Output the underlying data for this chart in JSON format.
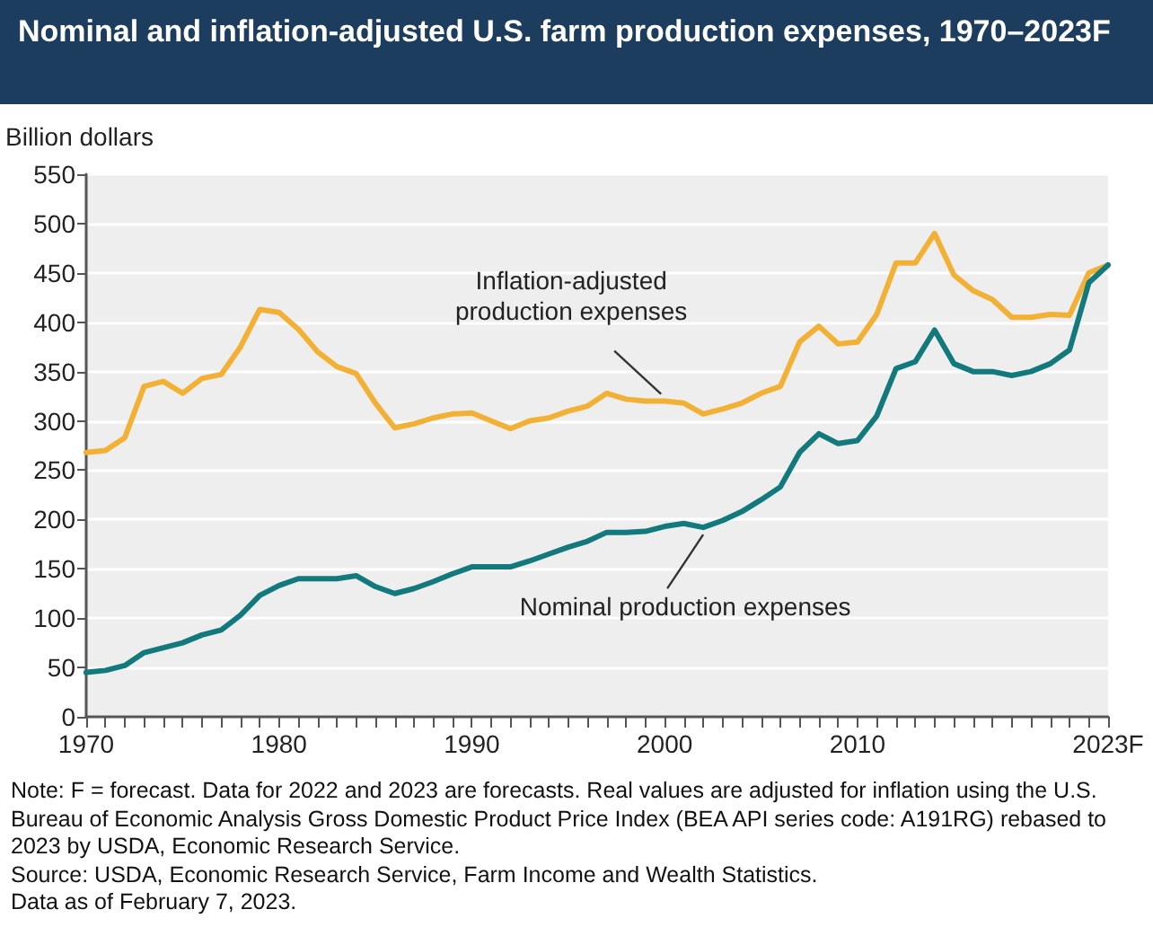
{
  "chart_data": {
    "type": "line",
    "title": "Nominal and inflation-adjusted U.S. farm production expenses, 1970–2023F",
    "ylabel": "Billion dollars",
    "x": [
      1970,
      1971,
      1972,
      1973,
      1974,
      1975,
      1976,
      1977,
      1978,
      1979,
      1980,
      1981,
      1982,
      1983,
      1984,
      1985,
      1986,
      1987,
      1988,
      1989,
      1990,
      1991,
      1992,
      1993,
      1994,
      1995,
      1996,
      1997,
      1998,
      1999,
      2000,
      2001,
      2002,
      2003,
      2004,
      2005,
      2006,
      2007,
      2008,
      2009,
      2010,
      2011,
      2012,
      2013,
      2014,
      2015,
      2016,
      2017,
      2018,
      2019,
      2020,
      2021,
      2022,
      2023
    ],
    "series": [
      {
        "color": "#f2b134",
        "values": [
          268,
          270,
          283,
          335,
          340,
          328,
          343,
          347,
          375,
          413,
          410,
          393,
          370,
          355,
          348,
          318,
          293,
          297,
          303,
          307,
          308,
          300,
          292,
          300,
          303,
          310,
          315,
          328,
          322,
          320,
          320,
          318,
          307,
          312,
          318,
          328,
          335,
          380,
          396,
          378,
          380,
          408,
          460,
          460,
          490,
          448,
          432,
          423,
          405,
          405,
          408,
          407,
          450,
          458
        ]
      },
      {
        "color": "#12797c",
        "values": [
          45,
          47,
          52,
          65,
          70,
          75,
          83,
          88,
          103,
          123,
          133,
          140,
          140,
          140,
          143,
          132,
          125,
          130,
          137,
          145,
          152,
          152,
          152,
          158,
          165,
          172,
          178,
          187,
          187,
          188,
          193,
          196,
          192,
          199,
          208,
          220,
          233,
          268,
          287,
          277,
          280,
          305,
          353,
          360,
          392,
          358,
          350,
          350,
          346,
          350,
          358,
          372,
          440,
          458
        ]
      }
    ],
    "xlim": [
      1970,
      2023
    ],
    "xticks": [
      {
        "value": 1970,
        "label": "1970"
      },
      {
        "value": 1971,
        "label": null
      },
      {
        "value": 1972,
        "label": null
      },
      {
        "value": 1973,
        "label": null
      },
      {
        "value": 1974,
        "label": null
      },
      {
        "value": 1975,
        "label": null
      },
      {
        "value": 1976,
        "label": null
      },
      {
        "value": 1977,
        "label": null
      },
      {
        "value": 1978,
        "label": null
      },
      {
        "value": 1979,
        "label": null
      },
      {
        "value": 1980,
        "label": "1980"
      },
      {
        "value": 1981,
        "label": null
      },
      {
        "value": 1982,
        "label": null
      },
      {
        "value": 1983,
        "label": null
      },
      {
        "value": 1984,
        "label": null
      },
      {
        "value": 1985,
        "label": null
      },
      {
        "value": 1986,
        "label": null
      },
      {
        "value": 1987,
        "label": null
      },
      {
        "value": 1988,
        "label": null
      },
      {
        "value": 1989,
        "label": null
      },
      {
        "value": 1990,
        "label": "1990"
      },
      {
        "value": 1991,
        "label": null
      },
      {
        "value": 1992,
        "label": null
      },
      {
        "value": 1993,
        "label": null
      },
      {
        "value": 1994,
        "label": null
      },
      {
        "value": 1995,
        "label": null
      },
      {
        "value": 1996,
        "label": null
      },
      {
        "value": 1997,
        "label": null
      },
      {
        "value": 1998,
        "label": null
      },
      {
        "value": 1999,
        "label": null
      },
      {
        "value": 2000,
        "label": "2000"
      },
      {
        "value": 2001,
        "label": null
      },
      {
        "value": 2002,
        "label": null
      },
      {
        "value": 2003,
        "label": null
      },
      {
        "value": 2004,
        "label": null
      },
      {
        "value": 2005,
        "label": null
      },
      {
        "value": 2006,
        "label": null
      },
      {
        "value": 2007,
        "label": null
      },
      {
        "value": 2008,
        "label": null
      },
      {
        "value": 2009,
        "label": null
      },
      {
        "value": 2010,
        "label": "2010"
      },
      {
        "value": 2011,
        "label": null
      },
      {
        "value": 2012,
        "label": null
      },
      {
        "value": 2013,
        "label": null
      },
      {
        "value": 2014,
        "label": null
      },
      {
        "value": 2015,
        "label": null
      },
      {
        "value": 2016,
        "label": null
      },
      {
        "value": 2017,
        "label": null
      },
      {
        "value": 2018,
        "label": null
      },
      {
        "value": 2019,
        "label": null
      },
      {
        "value": 2020,
        "label": null
      },
      {
        "value": 2021,
        "label": null
      },
      {
        "value": 2022,
        "label": null
      },
      {
        "value": 2023,
        "label": "2023F"
      }
    ],
    "ylim": [
      0,
      550
    ],
    "yticks": [
      0,
      50,
      100,
      150,
      200,
      250,
      300,
      350,
      400,
      450,
      500,
      550
    ],
    "grid": "y",
    "marker": "none",
    "line_style": "solid",
    "annotations": [
      {
        "text": "Inflation-adjusted\nproduction expenses",
        "x": 2000,
        "y": 320
      },
      {
        "text": "Nominal production expenses",
        "x": 2002,
        "y": 192
      },
      "Note: F = forecast. Data for 2022 and 2023 are forecasts. Real values are adjusted for inflation using the U.S. Bureau of Economic Analysis Gross Domestic Product Price Index (BEA API series code: A191RG) rebased to 2023 by USDA, Economic Research Service.",
      "Source: USDA, Economic Research Service, Farm Income and Wealth Statistics.",
      "Data as of February 7, 2023."
    ]
  }
}
